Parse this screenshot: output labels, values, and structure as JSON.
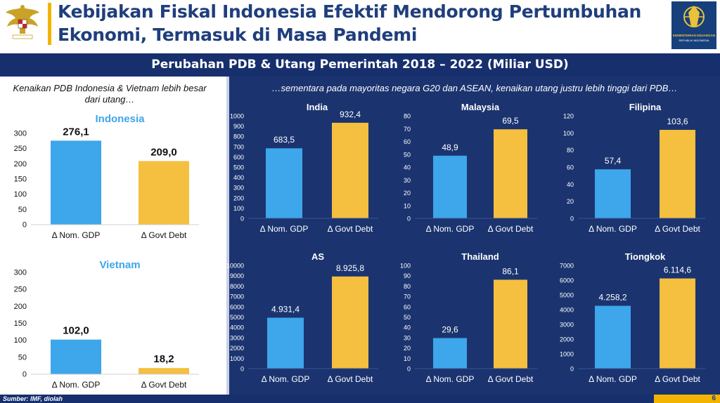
{
  "header": {
    "title_line1": "Kebijakan Fiskal Indonesia Efektif Mendorong Pertumbuhan",
    "title_line2": "Ekonomi, Termasuk di Masa Pandemi",
    "logo_caption1": "KEMENTERIAN KEUANGAN",
    "logo_caption2": "REPUBLIK INDONESIA"
  },
  "section": {
    "title": "Perubahan PDB & Utang Pemerintah 2018 – 2022 (Miliar USD)",
    "left_note": "Kenaikan PDB Indonesia & Vietnam lebih besar dari utang…",
    "right_note": "…sementara pada mayoritas negara G20 dan ASEAN, kenaikan utang justru lebih tinggi dari PDB…"
  },
  "footer": {
    "source": "Sumber: IMF, diolah",
    "page": "6"
  },
  "colors": {
    "gdp": "#3ea6ea",
    "debt": "#f5bf3f",
    "title": "#1f3e7c",
    "dark_bg": "#1b3470"
  },
  "chart_data": [
    {
      "id": "indonesia",
      "type": "bar",
      "title": "Indonesia",
      "categories": [
        "Δ Nom. GDP",
        "Δ Govt Debt"
      ],
      "values": [
        276.1,
        209.0
      ],
      "labels": [
        "276,1",
        "209,0"
      ],
      "ylim": [
        0,
        300
      ],
      "yticks": [
        "0",
        "50",
        "100",
        "150",
        "200",
        "250",
        "300"
      ]
    },
    {
      "id": "vietnam",
      "type": "bar",
      "title": "Vietnam",
      "categories": [
        "Δ Nom. GDP",
        "Δ Govt Debt"
      ],
      "values": [
        102.0,
        18.2
      ],
      "labels": [
        "102,0",
        "18,2"
      ],
      "ylim": [
        0,
        300
      ],
      "yticks": [
        "0",
        "50",
        "100",
        "150",
        "200",
        "250",
        "300"
      ]
    },
    {
      "id": "india",
      "type": "bar",
      "title": "India",
      "categories": [
        "Δ Nom. GDP",
        "Δ Govt Debt"
      ],
      "values": [
        683.5,
        932.4
      ],
      "labels": [
        "683,5",
        "932,4"
      ],
      "ylim": [
        0,
        1000
      ],
      "yticks": [
        "0",
        "100",
        "200",
        "300",
        "400",
        "500",
        "600",
        "700",
        "800",
        "900",
        "1000"
      ]
    },
    {
      "id": "malaysia",
      "type": "bar",
      "title": "Malaysia",
      "categories": [
        "Δ Nom. GDP",
        "Δ Govt Debt"
      ],
      "values": [
        48.9,
        69.5
      ],
      "labels": [
        "48,9",
        "69,5"
      ],
      "ylim": [
        0,
        80
      ],
      "yticks": [
        "0",
        "10",
        "20",
        "30",
        "40",
        "50",
        "60",
        "70",
        "80"
      ]
    },
    {
      "id": "filipina",
      "type": "bar",
      "title": "Filipina",
      "categories": [
        "Δ Nom. GDP",
        "Δ Govt Debt"
      ],
      "values": [
        57.4,
        103.6
      ],
      "labels": [
        "57,4",
        "103,6"
      ],
      "ylim": [
        0,
        120
      ],
      "yticks": [
        "0",
        "20",
        "40",
        "60",
        "80",
        "100",
        "120"
      ]
    },
    {
      "id": "as",
      "type": "bar",
      "title": "AS",
      "categories": [
        "Δ Nom. GDP",
        "Δ Govt Debt"
      ],
      "values": [
        4931.4,
        8925.8
      ],
      "labels": [
        "4.931,4",
        "8.925,8"
      ],
      "ylim": [
        0,
        10000
      ],
      "yticks": [
        "0",
        "1000",
        "2000",
        "3000",
        "4000",
        "5000",
        "6000",
        "7000",
        "8000",
        "9000",
        "10000"
      ]
    },
    {
      "id": "thailand",
      "type": "bar",
      "title": "Thailand",
      "categories": [
        "Δ Nom. GDP",
        "Δ Govt Debt"
      ],
      "values": [
        29.6,
        86.1
      ],
      "labels": [
        "29,6",
        "86,1"
      ],
      "ylim": [
        0,
        100
      ],
      "yticks": [
        "0",
        "10",
        "20",
        "30",
        "40",
        "50",
        "60",
        "70",
        "80",
        "90",
        "100"
      ]
    },
    {
      "id": "tiongkok",
      "type": "bar",
      "title": "Tiongkok",
      "categories": [
        "Δ Nom. GDP",
        "Δ Govt Debt"
      ],
      "values": [
        4258.2,
        6114.6
      ],
      "labels": [
        "4.258,2",
        "6.114,6"
      ],
      "ylim": [
        0,
        7000
      ],
      "yticks": [
        "0",
        "1000",
        "2000",
        "3000",
        "4000",
        "5000",
        "6000",
        "7000"
      ]
    }
  ]
}
